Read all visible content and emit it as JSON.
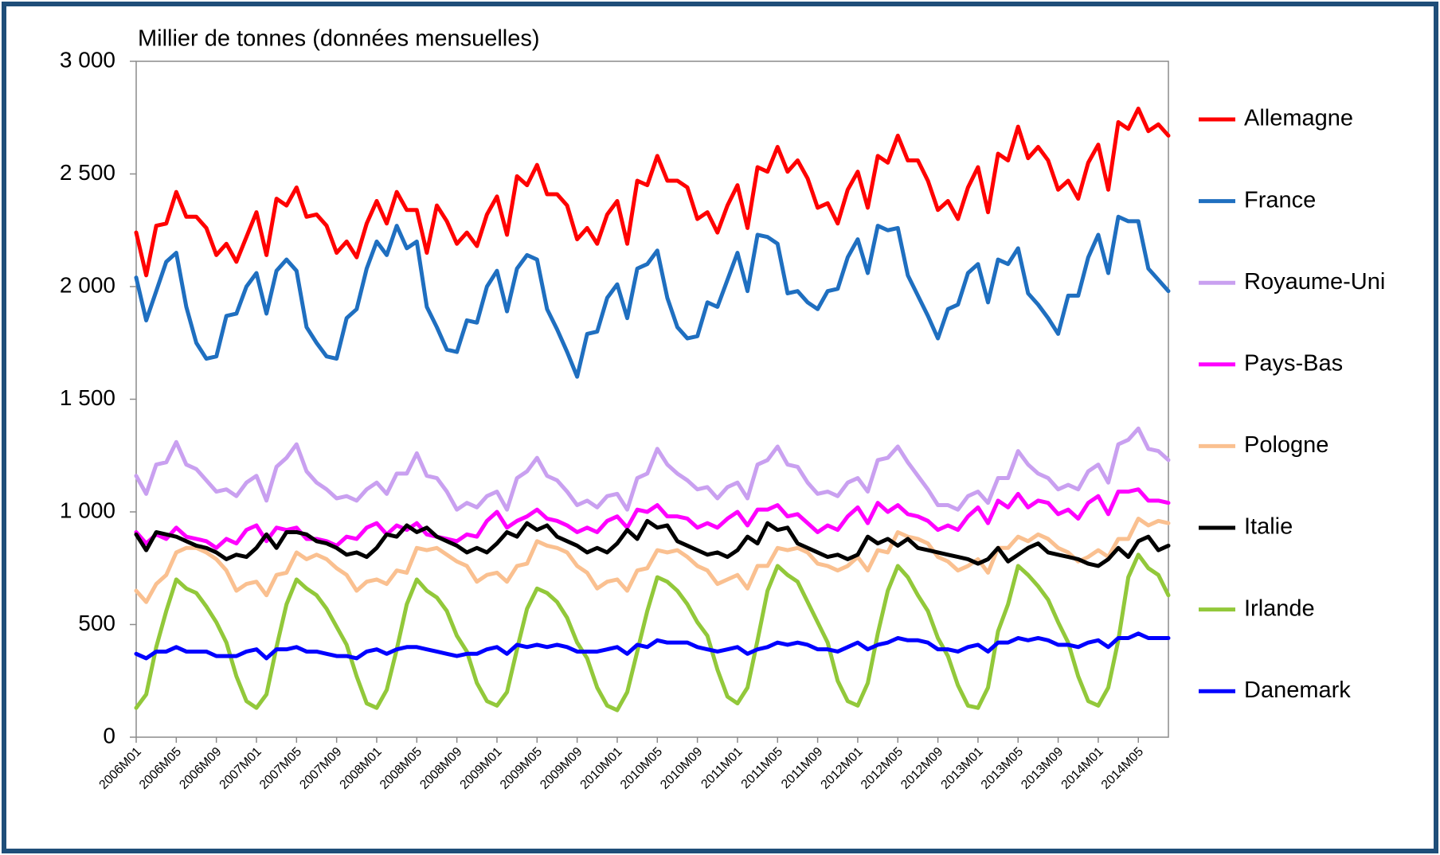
{
  "chart_data": {
    "type": "line",
    "title": "Millier de tonnes (données mensuelles)",
    "categories": [
      "2006M01",
      null,
      null,
      null,
      "2006M05",
      null,
      null,
      null,
      "2006M09",
      null,
      null,
      null,
      "2007M01",
      null,
      null,
      null,
      "2007M05",
      null,
      null,
      null,
      "2007M09",
      null,
      null,
      null,
      "2008M01",
      null,
      null,
      null,
      "2008M05",
      null,
      null,
      null,
      "2008M09",
      null,
      null,
      null,
      "2009M01",
      null,
      null,
      null,
      "2009M05",
      null,
      null,
      null,
      "2009M09",
      null,
      null,
      null,
      "2010M01",
      null,
      null,
      null,
      "2010M05",
      null,
      null,
      null,
      "2010M09",
      null,
      null,
      null,
      "2011M01",
      null,
      null,
      null,
      "2011M05",
      null,
      null,
      null,
      "2011M09",
      null,
      null,
      null,
      "2012M01",
      null,
      null,
      null,
      "2012M05",
      null,
      null,
      null,
      "2012M09",
      null,
      null,
      null,
      "2013M01",
      null,
      null,
      null,
      "2013M05",
      null,
      null,
      null,
      "2013M09",
      null,
      null,
      null,
      "2014M01",
      null,
      null,
      null,
      "2014M05",
      null,
      null,
      null
    ],
    "ylim": [
      0,
      3000
    ],
    "yticks": [
      0,
      500,
      {
        "value": 1000,
        "label": "1 000"
      },
      {
        "value": 1500,
        "label": "1 500"
      },
      {
        "value": 2000,
        "label": "2 000"
      },
      {
        "value": 2500,
        "label": "2 500"
      },
      {
        "value": 3000,
        "label": "3 000"
      }
    ],
    "grid": false,
    "legend": "right",
    "series": [
      {
        "name": "Allemagne",
        "color": "#ff0000",
        "values": [
          2240,
          2050,
          2270,
          2280,
          2420,
          2310,
          2310,
          2260,
          2140,
          2190,
          2110,
          2220,
          2330,
          2140,
          2390,
          2360,
          2440,
          2310,
          2320,
          2270,
          2150,
          2200,
          2130,
          2280,
          2380,
          2280,
          2420,
          2340,
          2340,
          2150,
          2360,
          2290,
          2190,
          2240,
          2180,
          2320,
          2400,
          2230,
          2490,
          2450,
          2540,
          2410,
          2410,
          2360,
          2210,
          2260,
          2190,
          2320,
          2380,
          2190,
          2470,
          2450,
          2580,
          2470,
          2470,
          2440,
          2300,
          2330,
          2240,
          2360,
          2450,
          2260,
          2530,
          2510,
          2620,
          2510,
          2560,
          2480,
          2350,
          2370,
          2280,
          2430,
          2510,
          2350,
          2580,
          2550,
          2670,
          2560,
          2560,
          2470,
          2340,
          2380,
          2300,
          2440,
          2530,
          2330,
          2590,
          2560,
          2710,
          2570,
          2620,
          2560,
          2430,
          2470,
          2390,
          2550,
          2630,
          2430,
          2730,
          2700,
          2790,
          2690,
          2720,
          2670
        ]
      },
      {
        "name": "France",
        "color": "#1f6fc0",
        "values": [
          2040,
          1850,
          1980,
          2110,
          2150,
          1910,
          1750,
          1680,
          1690,
          1870,
          1880,
          2000,
          2060,
          1880,
          2070,
          2120,
          2070,
          1820,
          1750,
          1690,
          1680,
          1860,
          1900,
          2080,
          2200,
          2140,
          2270,
          2170,
          2200,
          1910,
          1820,
          1720,
          1710,
          1850,
          1840,
          2000,
          2070,
          1890,
          2080,
          2140,
          2120,
          1900,
          1810,
          1710,
          1600,
          1790,
          1800,
          1950,
          2010,
          1860,
          2080,
          2100,
          2160,
          1950,
          1820,
          1770,
          1780,
          1930,
          1910,
          2030,
          2150,
          1980,
          2230,
          2220,
          2190,
          1970,
          1980,
          1930,
          1900,
          1980,
          1990,
          2130,
          2210,
          2060,
          2270,
          2250,
          2260,
          2050,
          1960,
          1870,
          1770,
          1900,
          1920,
          2060,
          2100,
          1930,
          2120,
          2100,
          2170,
          1970,
          1920,
          1860,
          1790,
          1960,
          1960,
          2130,
          2230,
          2060,
          2310,
          2290,
          2290,
          2080,
          2030,
          1980
        ]
      },
      {
        "name": "Royaume-Uni",
        "color": "#c9a0f0",
        "values": [
          1160,
          1080,
          1210,
          1220,
          1310,
          1210,
          1190,
          1140,
          1090,
          1100,
          1070,
          1130,
          1160,
          1050,
          1200,
          1240,
          1300,
          1180,
          1130,
          1100,
          1060,
          1070,
          1050,
          1100,
          1130,
          1080,
          1170,
          1170,
          1260,
          1160,
          1150,
          1090,
          1010,
          1040,
          1020,
          1070,
          1090,
          1010,
          1150,
          1180,
          1240,
          1160,
          1140,
          1090,
          1030,
          1050,
          1020,
          1070,
          1080,
          1010,
          1150,
          1170,
          1280,
          1210,
          1170,
          1140,
          1100,
          1110,
          1060,
          1110,
          1130,
          1060,
          1210,
          1230,
          1290,
          1210,
          1200,
          1130,
          1080,
          1090,
          1070,
          1130,
          1150,
          1090,
          1230,
          1240,
          1290,
          1220,
          1160,
          1100,
          1030,
          1030,
          1010,
          1070,
          1090,
          1040,
          1150,
          1150,
          1270,
          1210,
          1170,
          1150,
          1100,
          1120,
          1100,
          1180,
          1210,
          1130,
          1300,
          1320,
          1370,
          1280,
          1270,
          1230
        ]
      },
      {
        "name": "Pays-Bas",
        "color": "#ff00ff",
        "values": [
          910,
          860,
          900,
          880,
          930,
          890,
          880,
          870,
          840,
          880,
          860,
          920,
          940,
          870,
          930,
          920,
          930,
          880,
          880,
          870,
          850,
          890,
          880,
          930,
          950,
          900,
          940,
          920,
          950,
          900,
          890,
          880,
          870,
          900,
          890,
          960,
          1000,
          930,
          960,
          980,
          1010,
          970,
          960,
          940,
          910,
          930,
          910,
          960,
          980,
          930,
          1010,
          1000,
          1030,
          980,
          980,
          970,
          930,
          950,
          930,
          970,
          1000,
          940,
          1010,
          1010,
          1030,
          980,
          990,
          950,
          910,
          940,
          920,
          980,
          1020,
          950,
          1040,
          1000,
          1030,
          990,
          980,
          960,
          920,
          940,
          920,
          980,
          1020,
          950,
          1050,
          1020,
          1080,
          1020,
          1050,
          1040,
          990,
          1010,
          970,
          1040,
          1070,
          990,
          1090,
          1090,
          1100,
          1050,
          1050,
          1040
        ]
      },
      {
        "name": "Pologne",
        "color": "#fac090",
        "values": [
          650,
          600,
          680,
          720,
          820,
          840,
          840,
          820,
          790,
          740,
          650,
          680,
          690,
          630,
          720,
          730,
          820,
          790,
          810,
          790,
          750,
          720,
          650,
          690,
          700,
          680,
          740,
          730,
          840,
          830,
          840,
          810,
          780,
          760,
          690,
          720,
          730,
          690,
          760,
          770,
          870,
          850,
          840,
          820,
          760,
          730,
          660,
          690,
          700,
          650,
          740,
          750,
          830,
          820,
          830,
          800,
          760,
          740,
          680,
          700,
          720,
          660,
          760,
          760,
          840,
          830,
          840,
          820,
          770,
          760,
          740,
          760,
          800,
          740,
          830,
          820,
          910,
          890,
          880,
          860,
          800,
          780,
          740,
          760,
          790,
          730,
          840,
          840,
          890,
          870,
          900,
          880,
          840,
          820,
          780,
          800,
          830,
          800,
          880,
          880,
          970,
          940,
          960,
          950
        ]
      },
      {
        "name": "Italie",
        "color": "#000000",
        "values": [
          900,
          830,
          910,
          900,
          890,
          870,
          850,
          840,
          820,
          790,
          810,
          800,
          840,
          900,
          840,
          910,
          910,
          900,
          870,
          860,
          840,
          810,
          820,
          800,
          840,
          900,
          890,
          940,
          910,
          930,
          890,
          870,
          850,
          820,
          840,
          820,
          860,
          910,
          890,
          950,
          920,
          940,
          890,
          870,
          850,
          820,
          840,
          820,
          860,
          920,
          880,
          960,
          930,
          940,
          870,
          850,
          830,
          810,
          820,
          800,
          830,
          890,
          860,
          950,
          920,
          930,
          860,
          840,
          820,
          800,
          810,
          790,
          810,
          890,
          860,
          880,
          850,
          880,
          840,
          830,
          820,
          810,
          800,
          790,
          770,
          790,
          840,
          780,
          810,
          840,
          860,
          820,
          810,
          800,
          790,
          770,
          760,
          790,
          840,
          800,
          870,
          890,
          830,
          850
        ]
      },
      {
        "name": "Irlande",
        "color": "#92c83a",
        "values": [
          130,
          190,
          400,
          560,
          700,
          660,
          640,
          580,
          510,
          420,
          270,
          160,
          130,
          190,
          400,
          590,
          700,
          660,
          630,
          570,
          490,
          410,
          270,
          150,
          130,
          210,
          390,
          590,
          700,
          650,
          620,
          560,
          450,
          380,
          240,
          160,
          140,
          200,
          390,
          570,
          660,
          640,
          600,
          530,
          420,
          350,
          220,
          140,
          120,
          200,
          380,
          560,
          710,
          690,
          650,
          590,
          510,
          450,
          300,
          180,
          150,
          220,
          430,
          650,
          760,
          720,
          690,
          600,
          510,
          420,
          250,
          160,
          140,
          240,
          460,
          650,
          760,
          710,
          630,
          560,
          440,
          360,
          230,
          140,
          130,
          220,
          470,
          590,
          760,
          720,
          670,
          610,
          510,
          420,
          270,
          160,
          140,
          220,
          430,
          710,
          810,
          750,
          720,
          630
        ]
      },
      {
        "name": "Danemark",
        "color": "#0000ff",
        "values": [
          370,
          350,
          380,
          380,
          400,
          380,
          380,
          380,
          360,
          360,
          360,
          380,
          390,
          350,
          390,
          390,
          400,
          380,
          380,
          370,
          360,
          360,
          350,
          380,
          390,
          370,
          390,
          400,
          400,
          390,
          380,
          370,
          360,
          370,
          370,
          390,
          400,
          370,
          410,
          400,
          410,
          400,
          410,
          400,
          380,
          380,
          380,
          390,
          400,
          370,
          410,
          400,
          430,
          420,
          420,
          420,
          400,
          390,
          380,
          390,
          400,
          370,
          390,
          400,
          420,
          410,
          420,
          410,
          390,
          390,
          380,
          400,
          420,
          390,
          410,
          420,
          440,
          430,
          430,
          420,
          390,
          390,
          380,
          400,
          410,
          380,
          420,
          420,
          440,
          430,
          440,
          430,
          410,
          410,
          400,
          420,
          430,
          400,
          440,
          440,
          460,
          440,
          440,
          440
        ]
      }
    ]
  }
}
